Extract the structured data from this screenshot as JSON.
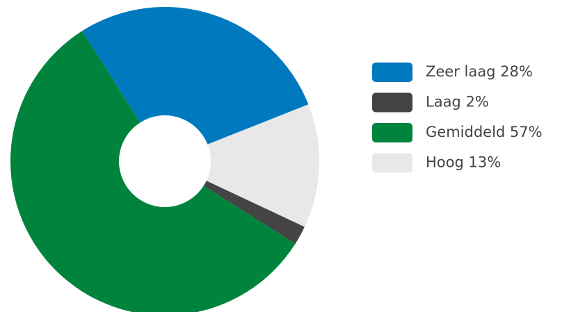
{
  "chart_data": {
    "type": "donut",
    "categories": [
      "Zeer laag",
      "Laag",
      "Gemiddeld",
      "Hoog"
    ],
    "values": [
      28,
      2,
      57,
      13
    ],
    "value_labels": [
      "28%",
      "2%",
      "57%",
      "13%"
    ],
    "colors": [
      "#0079bf",
      "#444444",
      "#00843d",
      "#e8e8e8"
    ]
  }
}
